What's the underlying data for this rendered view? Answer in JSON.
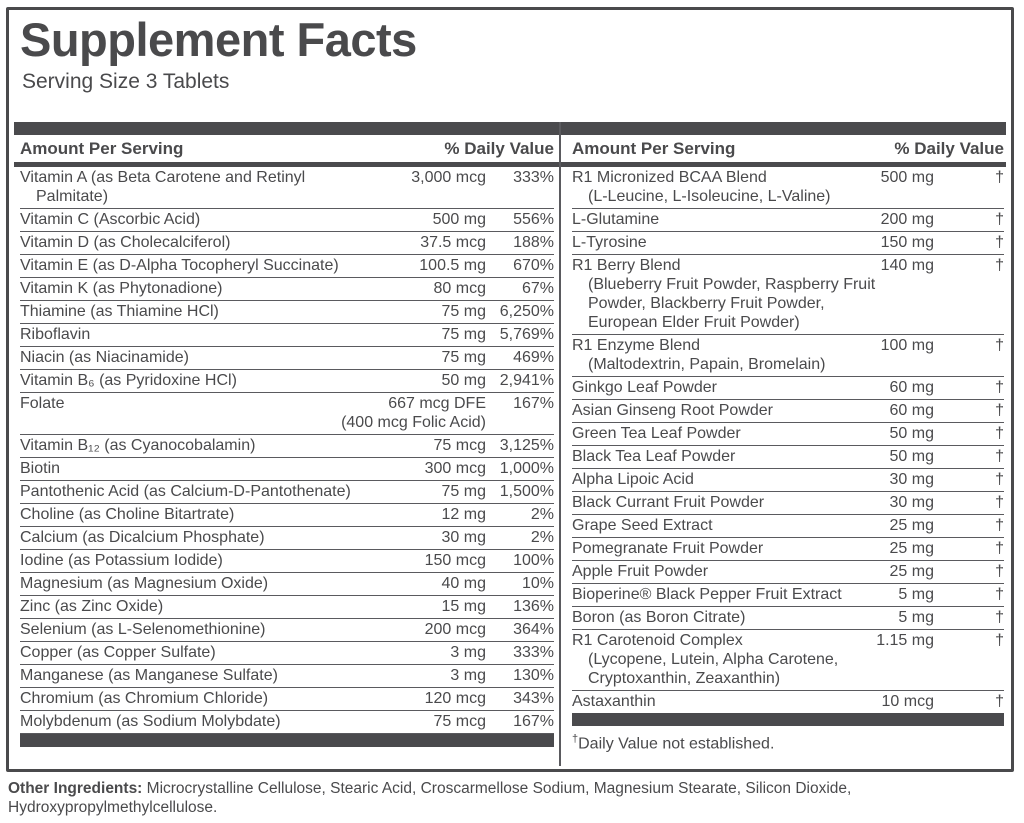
{
  "colors": {
    "text": "#4a4a4c",
    "bar": "#4a4a4d",
    "line": "#5a5a5e",
    "border": "#4a4a4c",
    "bg": "#ffffff"
  },
  "label": {
    "title": "Supplement Facts",
    "serving_size": "Serving Size 3 Tablets",
    "header_amount": "Amount Per Serving",
    "header_dv": "% Daily Value",
    "footnote_dagger": "†",
    "footnote_text": "Daily Value not established.",
    "other_ingredients_label": "Other Ingredients:",
    "other_ingredients_text": " Microcrystalline Cellulose, Stearic Acid, Croscarmellose Sodium, Magnesium Stearate, Silicon Dioxide, Hydroxypropylmethylcellulose."
  },
  "left_rows": [
    {
      "lines": [
        "Vitamin A (as Beta Carotene and Retinyl",
        "Palmitate)"
      ],
      "amount": "3,000 mcg",
      "dv": "333%"
    },
    {
      "lines": [
        "Vitamin C (Ascorbic Acid)"
      ],
      "amount": "500 mg",
      "dv": "556%"
    },
    {
      "lines": [
        "Vitamin D (as Cholecalciferol)"
      ],
      "amount": "37.5 mcg",
      "dv": "188%"
    },
    {
      "lines": [
        "Vitamin E (as D-Alpha Tocopheryl Succinate)"
      ],
      "amount": "100.5 mg",
      "dv": "670%"
    },
    {
      "lines": [
        "Vitamin K (as Phytonadione)"
      ],
      "amount": "80 mcg",
      "dv": "67%"
    },
    {
      "lines": [
        "Thiamine (as Thiamine HCl)"
      ],
      "amount": "75 mg",
      "dv": "6,250%"
    },
    {
      "lines": [
        "Riboflavin"
      ],
      "amount": "75 mg",
      "dv": "5,769%"
    },
    {
      "lines": [
        "Niacin (as Niacinamide)"
      ],
      "amount": "75 mg",
      "dv": "469%"
    },
    {
      "lines": [
        "Vitamin B₆ (as Pyridoxine HCl)"
      ],
      "amount": "50 mg",
      "dv": "2,941%"
    },
    {
      "lines": [
        "Folate"
      ],
      "amount": "667 mcg DFE",
      "amount2": "(400 mcg Folic Acid)",
      "dv": "167%"
    },
    {
      "lines": [
        "Vitamin B₁₂ (as Cyanocobalamin)"
      ],
      "amount": "75 mcg",
      "dv": "3,125%"
    },
    {
      "lines": [
        "Biotin"
      ],
      "amount": "300 mcg",
      "dv": "1,000%"
    },
    {
      "lines": [
        "Pantothenic Acid (as Calcium-D-Pantothenate)"
      ],
      "amount": "75 mg",
      "dv": "1,500%"
    },
    {
      "lines": [
        "Choline (as Choline Bitartrate)"
      ],
      "amount": "12 mg",
      "dv": "2%"
    },
    {
      "lines": [
        "Calcium (as Dicalcium Phosphate)"
      ],
      "amount": "30 mg",
      "dv": "2%"
    },
    {
      "lines": [
        "Iodine (as Potassium Iodide)"
      ],
      "amount": "150 mcg",
      "dv": "100%"
    },
    {
      "lines": [
        "Magnesium (as Magnesium Oxide)"
      ],
      "amount": "40 mg",
      "dv": "10%"
    },
    {
      "lines": [
        "Zinc (as Zinc Oxide)"
      ],
      "amount": "15 mg",
      "dv": "136%"
    },
    {
      "lines": [
        "Selenium (as L-Selenomethionine)"
      ],
      "amount": "200 mcg",
      "dv": "364%"
    },
    {
      "lines": [
        "Copper (as Copper Sulfate)"
      ],
      "amount": "3 mg",
      "dv": "333%"
    },
    {
      "lines": [
        "Manganese (as Manganese Sulfate)"
      ],
      "amount": "3 mg",
      "dv": "130%"
    },
    {
      "lines": [
        "Chromium (as Chromium Chloride)"
      ],
      "amount": "120 mcg",
      "dv": "343%"
    },
    {
      "lines": [
        "Molybdenum (as Sodium Molybdate)"
      ],
      "amount": "75 mcg",
      "dv": "167%"
    }
  ],
  "right_rows": [
    {
      "lines": [
        "R1 Micronized BCAA Blend",
        "(L-Leucine, L-Isoleucine, L-Valine)"
      ],
      "amount": "500 mg",
      "dv": "†"
    },
    {
      "lines": [
        "L-Glutamine"
      ],
      "amount": "200 mg",
      "dv": "†"
    },
    {
      "lines": [
        "L-Tyrosine"
      ],
      "amount": "150 mg",
      "dv": "†"
    },
    {
      "lines": [
        "R1 Berry Blend",
        "(Blueberry Fruit Powder, Raspberry Fruit",
        "Powder, Blackberry Fruit Powder,",
        "European Elder Fruit Powder)"
      ],
      "amount": "140 mg",
      "dv": "†"
    },
    {
      "lines": [
        "R1 Enzyme Blend",
        "(Maltodextrin, Papain, Bromelain)"
      ],
      "amount": "100 mg",
      "dv": "†"
    },
    {
      "lines": [
        "Ginkgo Leaf Powder"
      ],
      "amount": "60 mg",
      "dv": "†"
    },
    {
      "lines": [
        "Asian Ginseng Root Powder"
      ],
      "amount": "60 mg",
      "dv": "†"
    },
    {
      "lines": [
        "Green Tea Leaf Powder"
      ],
      "amount": "50 mg",
      "dv": "†"
    },
    {
      "lines": [
        "Black Tea Leaf Powder"
      ],
      "amount": "50 mg",
      "dv": "†"
    },
    {
      "lines": [
        "Alpha Lipoic Acid"
      ],
      "amount": "30 mg",
      "dv": "†"
    },
    {
      "lines": [
        "Black Currant Fruit Powder"
      ],
      "amount": "30 mg",
      "dv": "†"
    },
    {
      "lines": [
        "Grape Seed Extract"
      ],
      "amount": "25 mg",
      "dv": "†"
    },
    {
      "lines": [
        "Pomegranate Fruit Powder"
      ],
      "amount": "25 mg",
      "dv": "†"
    },
    {
      "lines": [
        "Apple Fruit Powder"
      ],
      "amount": "25 mg",
      "dv": "†"
    },
    {
      "lines": [
        "Bioperine® Black Pepper Fruit Extract"
      ],
      "amount": "5 mg",
      "dv": "†"
    },
    {
      "lines": [
        "Boron (as Boron Citrate)"
      ],
      "amount": "5 mg",
      "dv": "†"
    },
    {
      "lines": [
        "R1 Carotenoid Complex",
        "(Lycopene, Lutein, Alpha Carotene,",
        "Cryptoxanthin, Zeaxanthin)"
      ],
      "amount": "1.15 mg",
      "dv": "†"
    },
    {
      "lines": [
        "Astaxanthin"
      ],
      "amount": "10 mcg",
      "dv": "†"
    }
  ]
}
